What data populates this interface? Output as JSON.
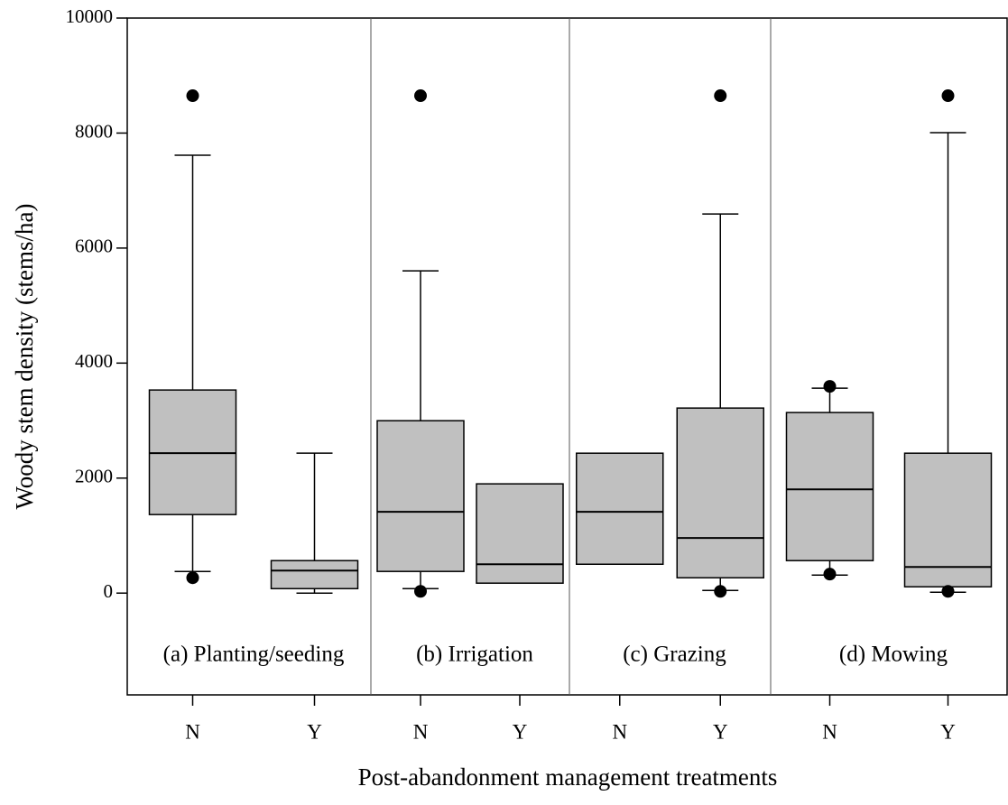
{
  "chart_data": {
    "type": "box",
    "y_label": "Woody stem density (stems/ha)",
    "x_label": "Post-abandonment management treatments",
    "ylim": [
      -1770,
      10000
    ],
    "yticks": [
      0,
      2000,
      4000,
      6000,
      8000,
      10000
    ],
    "box_color": "#c0c0c0",
    "panels": [
      {
        "label": "(a) Planting/seeding",
        "boxes": [
          {
            "category": "N",
            "whisker_low": 377,
            "q1": 1366,
            "median": 2433,
            "q3": 3532,
            "whisker_high": 7614,
            "outliers": [
              8650,
              267
            ]
          },
          {
            "category": "Y",
            "whisker_low": 0,
            "q1": 78,
            "median": 392,
            "q3": 565,
            "whisker_high": 2433,
            "outliers": []
          }
        ]
      },
      {
        "label": "(b) Irrigation",
        "boxes": [
          {
            "category": "N",
            "whisker_low": 78,
            "q1": 377,
            "median": 1413,
            "q3": 2998,
            "whisker_high": 5604,
            "outliers": [
              8650,
              31
            ]
          },
          {
            "category": "Y",
            "q1": 173,
            "median": 502,
            "q3": 1900,
            "outliers": []
          }
        ]
      },
      {
        "label": "(c) Grazing",
        "boxes": [
          {
            "category": "N",
            "q1": 502,
            "median": 1413,
            "q3": 2433,
            "outliers": []
          },
          {
            "category": "Y",
            "whisker_low": 47,
            "q1": 267,
            "median": 958,
            "q3": 3218,
            "whisker_high": 6593,
            "outliers": [
              8650,
              31
            ]
          }
        ]
      },
      {
        "label": "(d) Mowing",
        "boxes": [
          {
            "category": "N",
            "whisker_low": 314,
            "q1": 565,
            "median": 1805,
            "q3": 3140,
            "whisker_high": 3564,
            "outliers": [
              3595,
              330
            ]
          },
          {
            "category": "Y",
            "whisker_low": 16,
            "q1": 110,
            "median": 455,
            "q3": 2433,
            "whisker_high": 8006,
            "outliers": [
              8650,
              31
            ]
          }
        ]
      }
    ]
  }
}
